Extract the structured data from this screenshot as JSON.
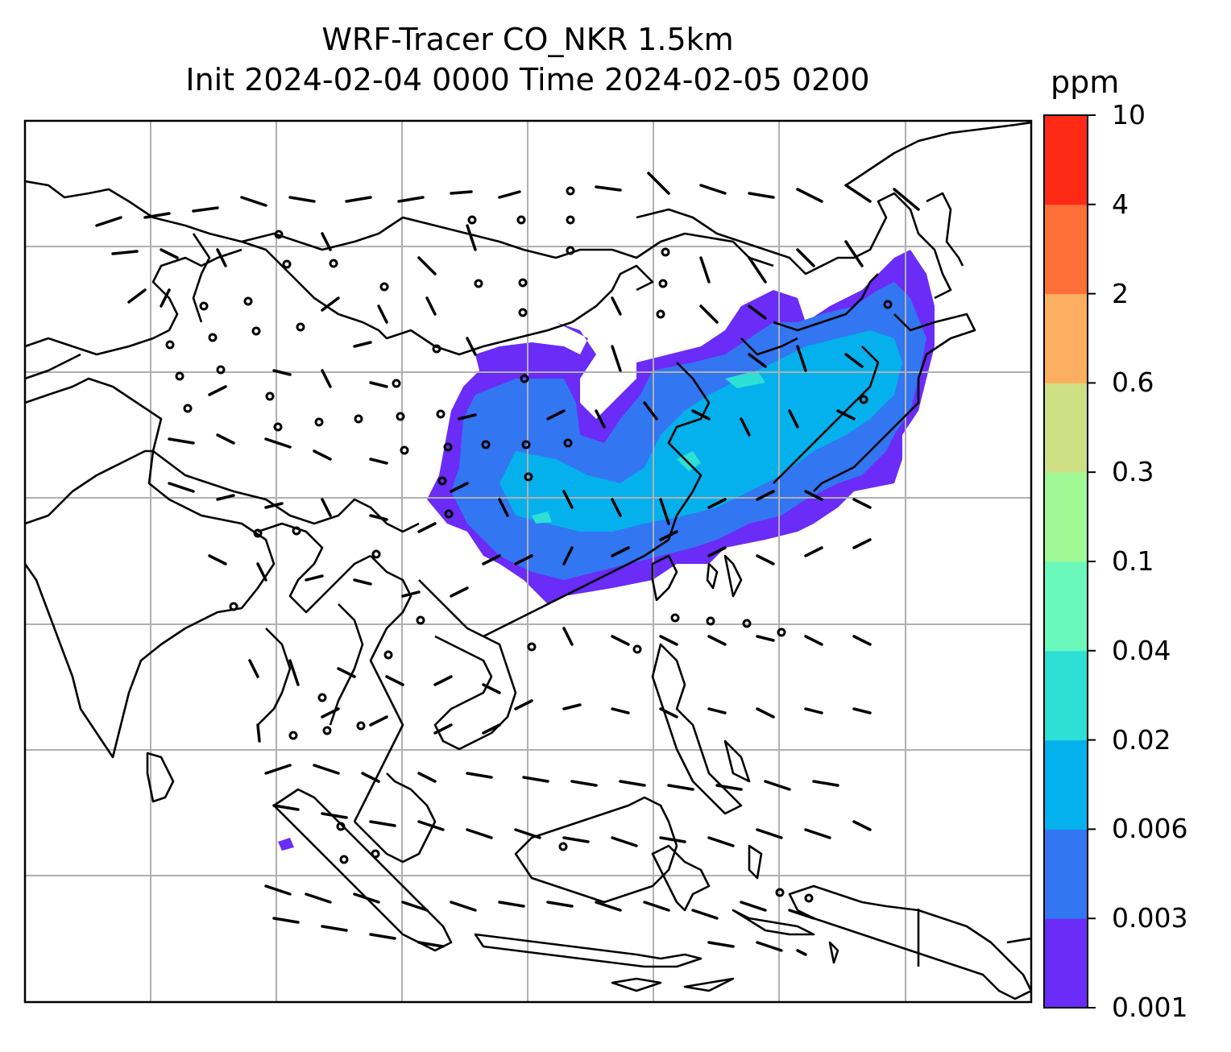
{
  "title": {
    "line1": "WRF-Tracer CO_NKR 1.5km",
    "line2": "Init 2024-02-04 0000 Time 2024-02-05 0200"
  },
  "colorbar": {
    "unit": "ppm",
    "levels": [
      "0.001",
      "0.003",
      "0.006",
      "0.02",
      "0.04",
      "0.1",
      "0.3",
      "0.6",
      "2",
      "4",
      "10"
    ],
    "colors": [
      "#6a2cf6",
      "#3276f2",
      "#05b1ec",
      "#2ddfd5",
      "#6af8bb",
      "#9ff893",
      "#cfe084",
      "#fdaf61",
      "#fe7038",
      "#fe2a15"
    ]
  },
  "plume": {
    "note_colors": {
      "low": "#6a2cf6",
      "mid": "#3276f2",
      "high": "#05b1ec",
      "peak": "#2ddfd5"
    }
  },
  "map": {
    "coastline_color": "#000000",
    "grid_color": "#b0b0b0",
    "barb_color": "#000000"
  }
}
